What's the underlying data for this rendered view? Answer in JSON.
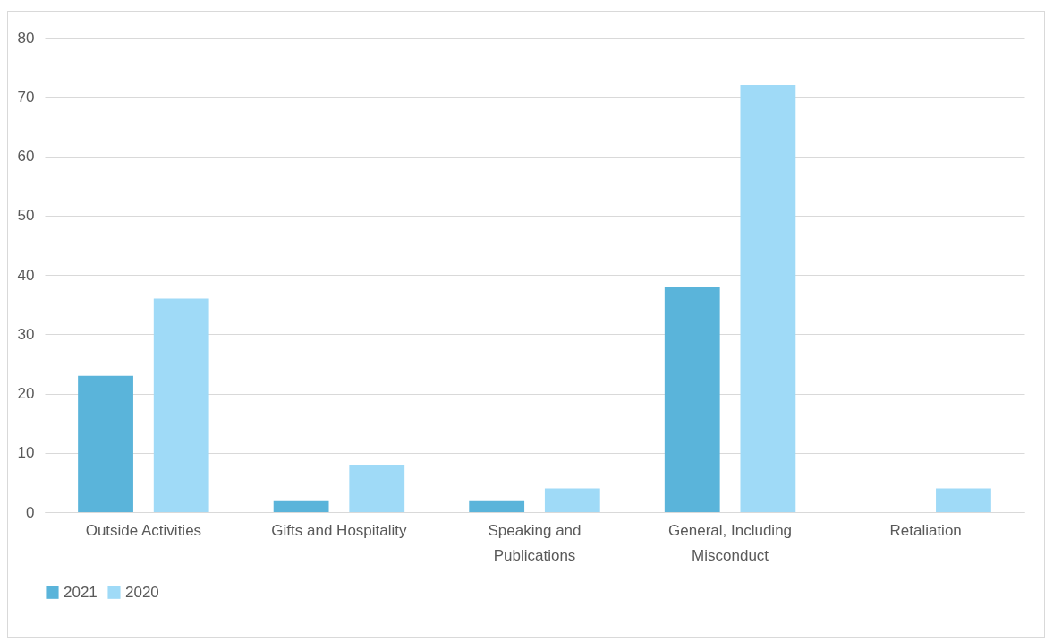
{
  "chart_data": {
    "type": "bar",
    "categories": [
      "Outside Activities",
      "Gifts and Hospitality",
      "Speaking and Publications",
      "General, Including Misconduct",
      "Retaliation"
    ],
    "series": [
      {
        "name": "2021",
        "color": "#5ab4da",
        "values": [
          23,
          2,
          2,
          38,
          0
        ]
      },
      {
        "name": "2020",
        "color": "#9fdaf7",
        "values": [
          36,
          8,
          4,
          72,
          4
        ]
      }
    ],
    "ylim": [
      0,
      80
    ],
    "yticks": [
      0,
      10,
      20,
      30,
      40,
      50,
      60,
      70,
      80
    ],
    "grid": "y",
    "legend": "bottom"
  }
}
